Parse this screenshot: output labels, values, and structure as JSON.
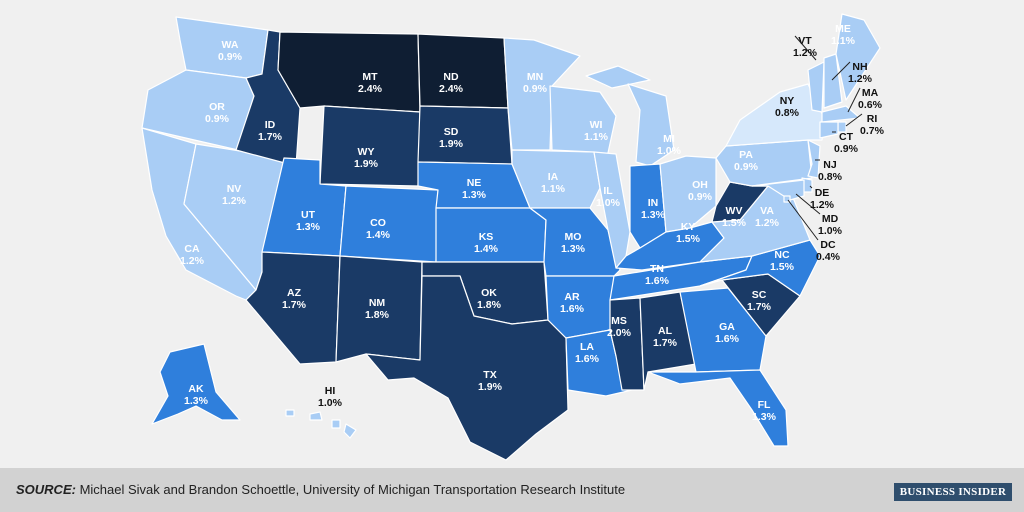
{
  "legend_colors": {
    "very_dark": "#0f1e33",
    "dark": "#1a3a66",
    "medium": "#2f7fdc",
    "light": "#a9cdf5",
    "very_light": "#d6e8fb"
  },
  "states": [
    {
      "code": "WA",
      "value": "0.9%"
    },
    {
      "code": "OR",
      "value": "0.9%"
    },
    {
      "code": "CA",
      "value": "1.2%"
    },
    {
      "code": "NV",
      "value": "1.2%"
    },
    {
      "code": "ID",
      "value": "1.7%"
    },
    {
      "code": "MT",
      "value": "2.4%"
    },
    {
      "code": "WY",
      "value": "1.9%"
    },
    {
      "code": "UT",
      "value": "1.3%"
    },
    {
      "code": "AZ",
      "value": "1.7%"
    },
    {
      "code": "CO",
      "value": "1.4%"
    },
    {
      "code": "NM",
      "value": "1.8%"
    },
    {
      "code": "ND",
      "value": "2.4%"
    },
    {
      "code": "SD",
      "value": "1.9%"
    },
    {
      "code": "NE",
      "value": "1.3%"
    },
    {
      "code": "KS",
      "value": "1.4%"
    },
    {
      "code": "OK",
      "value": "1.8%"
    },
    {
      "code": "TX",
      "value": "1.9%"
    },
    {
      "code": "MN",
      "value": "0.9%"
    },
    {
      "code": "IA",
      "value": "1.1%"
    },
    {
      "code": "MO",
      "value": "1.3%"
    },
    {
      "code": "AR",
      "value": "1.6%"
    },
    {
      "code": "LA",
      "value": "1.6%"
    },
    {
      "code": "WI",
      "value": "1.1%"
    },
    {
      "code": "IL",
      "value": "1.0%"
    },
    {
      "code": "MI",
      "value": "1.0%"
    },
    {
      "code": "IN",
      "value": "1.3%"
    },
    {
      "code": "OH",
      "value": "0.9%"
    },
    {
      "code": "KY",
      "value": "1.5%"
    },
    {
      "code": "TN",
      "value": "1.6%"
    },
    {
      "code": "MS",
      "value": "2.0%"
    },
    {
      "code": "AL",
      "value": "1.7%"
    },
    {
      "code": "GA",
      "value": "1.6%"
    },
    {
      "code": "FL",
      "value": "1.3%"
    },
    {
      "code": "SC",
      "value": "1.7%"
    },
    {
      "code": "NC",
      "value": "1.5%"
    },
    {
      "code": "VA",
      "value": "1.2%"
    },
    {
      "code": "WV",
      "value": "1.5%"
    },
    {
      "code": "PA",
      "value": "0.9%"
    },
    {
      "code": "NY",
      "value": "0.8%"
    },
    {
      "code": "VT",
      "value": "1.2%"
    },
    {
      "code": "NH",
      "value": "1.2%"
    },
    {
      "code": "ME",
      "value": "1.1%"
    },
    {
      "code": "MA",
      "value": "0.6%"
    },
    {
      "code": "RI",
      "value": "0.7%"
    },
    {
      "code": "CT",
      "value": "0.9%"
    },
    {
      "code": "NJ",
      "value": "0.8%"
    },
    {
      "code": "DE",
      "value": "1.2%"
    },
    {
      "code": "MD",
      "value": "1.0%"
    },
    {
      "code": "DC",
      "value": "0.4%"
    },
    {
      "code": "AK",
      "value": "1.3%"
    },
    {
      "code": "HI",
      "value": "1.0%"
    }
  ],
  "footer": {
    "source_label": "SOURCE:",
    "source_text": " Michael Sivak and Brandon Schoettle, University of Michigan Transportation Research Institute",
    "brand": "BUSINESS INSIDER"
  }
}
